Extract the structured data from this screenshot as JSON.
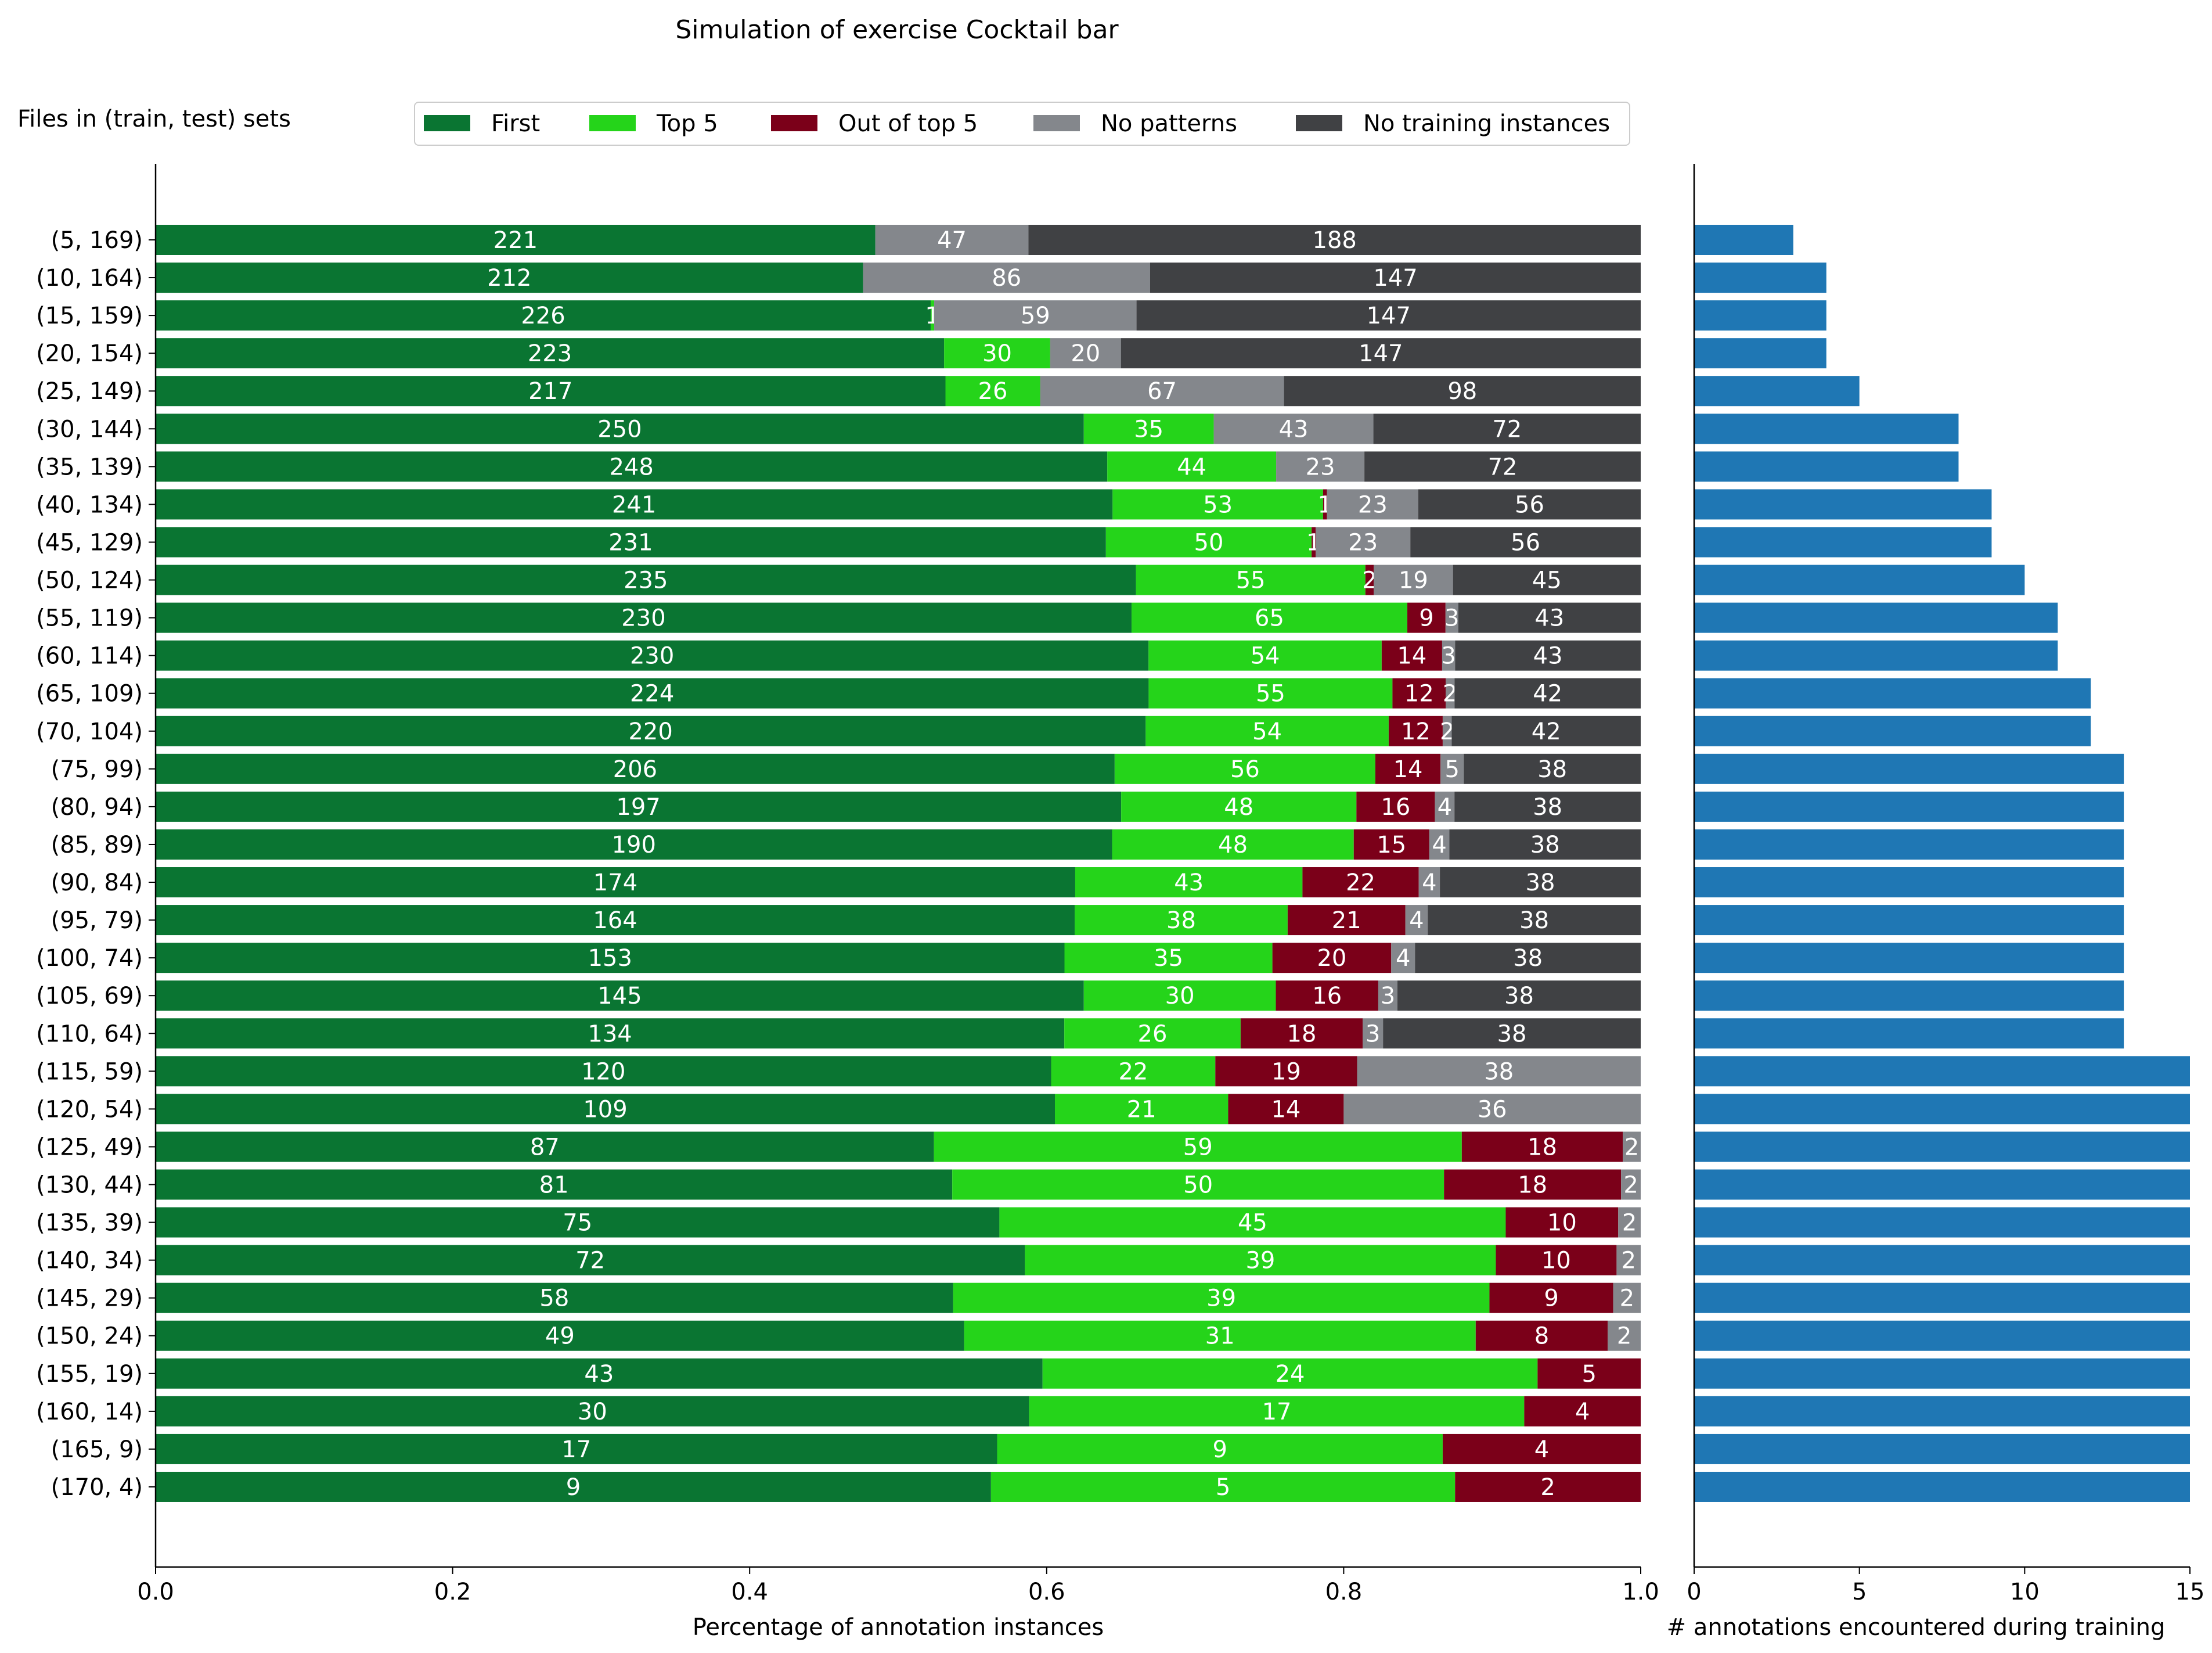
{
  "chart_data": [
    {
      "type": "bar",
      "orientation": "horizontal",
      "stacked": true,
      "normalized": true,
      "title": "Simulation of exercise Cocktail bar",
      "ylabel": "Files in (train, test) sets",
      "xlabel": "Percentage of annotation instances",
      "xlim": [
        0,
        1
      ],
      "xticks": [
        "0.0",
        "0.2",
        "0.4",
        "0.6",
        "0.8",
        "1.0"
      ],
      "grid": false,
      "legend_position": "top",
      "categories": [
        "(5, 169)",
        "(10, 164)",
        "(15, 159)",
        "(20, 154)",
        "(25, 149)",
        "(30, 144)",
        "(35, 139)",
        "(40, 134)",
        "(45, 129)",
        "(50, 124)",
        "(55, 119)",
        "(60, 114)",
        "(65, 109)",
        "(70, 104)",
        "(75, 99)",
        "(80, 94)",
        "(85, 89)",
        "(90, 84)",
        "(95, 79)",
        "(100, 74)",
        "(105, 69)",
        "(110, 64)",
        "(115, 59)",
        "(120, 54)",
        "(125, 49)",
        "(130, 44)",
        "(135, 39)",
        "(140, 34)",
        "(145, 29)",
        "(150, 24)",
        "(155, 19)",
        "(160, 14)",
        "(165, 9)",
        "(170, 4)"
      ],
      "series": [
        {
          "name": "First",
          "color": "#0a7532",
          "values": [
            221,
            212,
            226,
            223,
            217,
            250,
            248,
            241,
            231,
            235,
            230,
            230,
            224,
            220,
            206,
            197,
            190,
            174,
            164,
            153,
            145,
            134,
            120,
            109,
            87,
            81,
            75,
            72,
            58,
            49,
            43,
            30,
            17,
            9
          ]
        },
        {
          "name": "Top 5",
          "color": "#25d41a",
          "values": [
            0,
            0,
            1,
            30,
            26,
            35,
            44,
            53,
            50,
            55,
            65,
            54,
            55,
            54,
            56,
            48,
            48,
            43,
            38,
            35,
            30,
            26,
            22,
            21,
            59,
            50,
            45,
            39,
            39,
            31,
            24,
            17,
            9,
            5
          ]
        },
        {
          "name": "Out of top 5",
          "color": "#7b0019",
          "values": [
            0,
            0,
            0,
            0,
            0,
            0,
            0,
            1,
            1,
            2,
            9,
            14,
            12,
            12,
            14,
            16,
            15,
            22,
            21,
            20,
            16,
            18,
            19,
            14,
            18,
            18,
            10,
            10,
            9,
            8,
            5,
            4,
            4,
            2
          ]
        },
        {
          "name": "No patterns",
          "color": "#84878c",
          "values": [
            47,
            86,
            59,
            20,
            67,
            43,
            23,
            23,
            23,
            19,
            3,
            3,
            2,
            2,
            5,
            4,
            4,
            4,
            4,
            4,
            3,
            3,
            38,
            36,
            2,
            2,
            2,
            2,
            2,
            2,
            0,
            0,
            0,
            0
          ]
        },
        {
          "name": "No training instances",
          "color": "#404144",
          "values": [
            188,
            147,
            147,
            147,
            98,
            72,
            72,
            56,
            56,
            45,
            43,
            43,
            42,
            42,
            38,
            38,
            38,
            38,
            38,
            38,
            38,
            38,
            0,
            0,
            0,
            0,
            0,
            0,
            0,
            0,
            0,
            0,
            0,
            0
          ]
        }
      ]
    },
    {
      "type": "bar",
      "orientation": "horizontal",
      "xlabel": "# annotations encountered during training",
      "xlim": [
        0,
        15
      ],
      "xticks": [
        "0",
        "5",
        "10",
        "15"
      ],
      "grid": false,
      "color": "#1f77b4",
      "values": [
        3,
        4,
        4,
        4,
        5,
        8,
        8,
        9,
        9,
        10,
        11,
        11,
        12,
        12,
        13,
        13,
        13,
        13,
        13,
        13,
        13,
        13,
        15,
        15,
        15,
        15,
        15,
        15,
        15,
        15,
        15,
        15,
        15,
        15
      ]
    }
  ]
}
